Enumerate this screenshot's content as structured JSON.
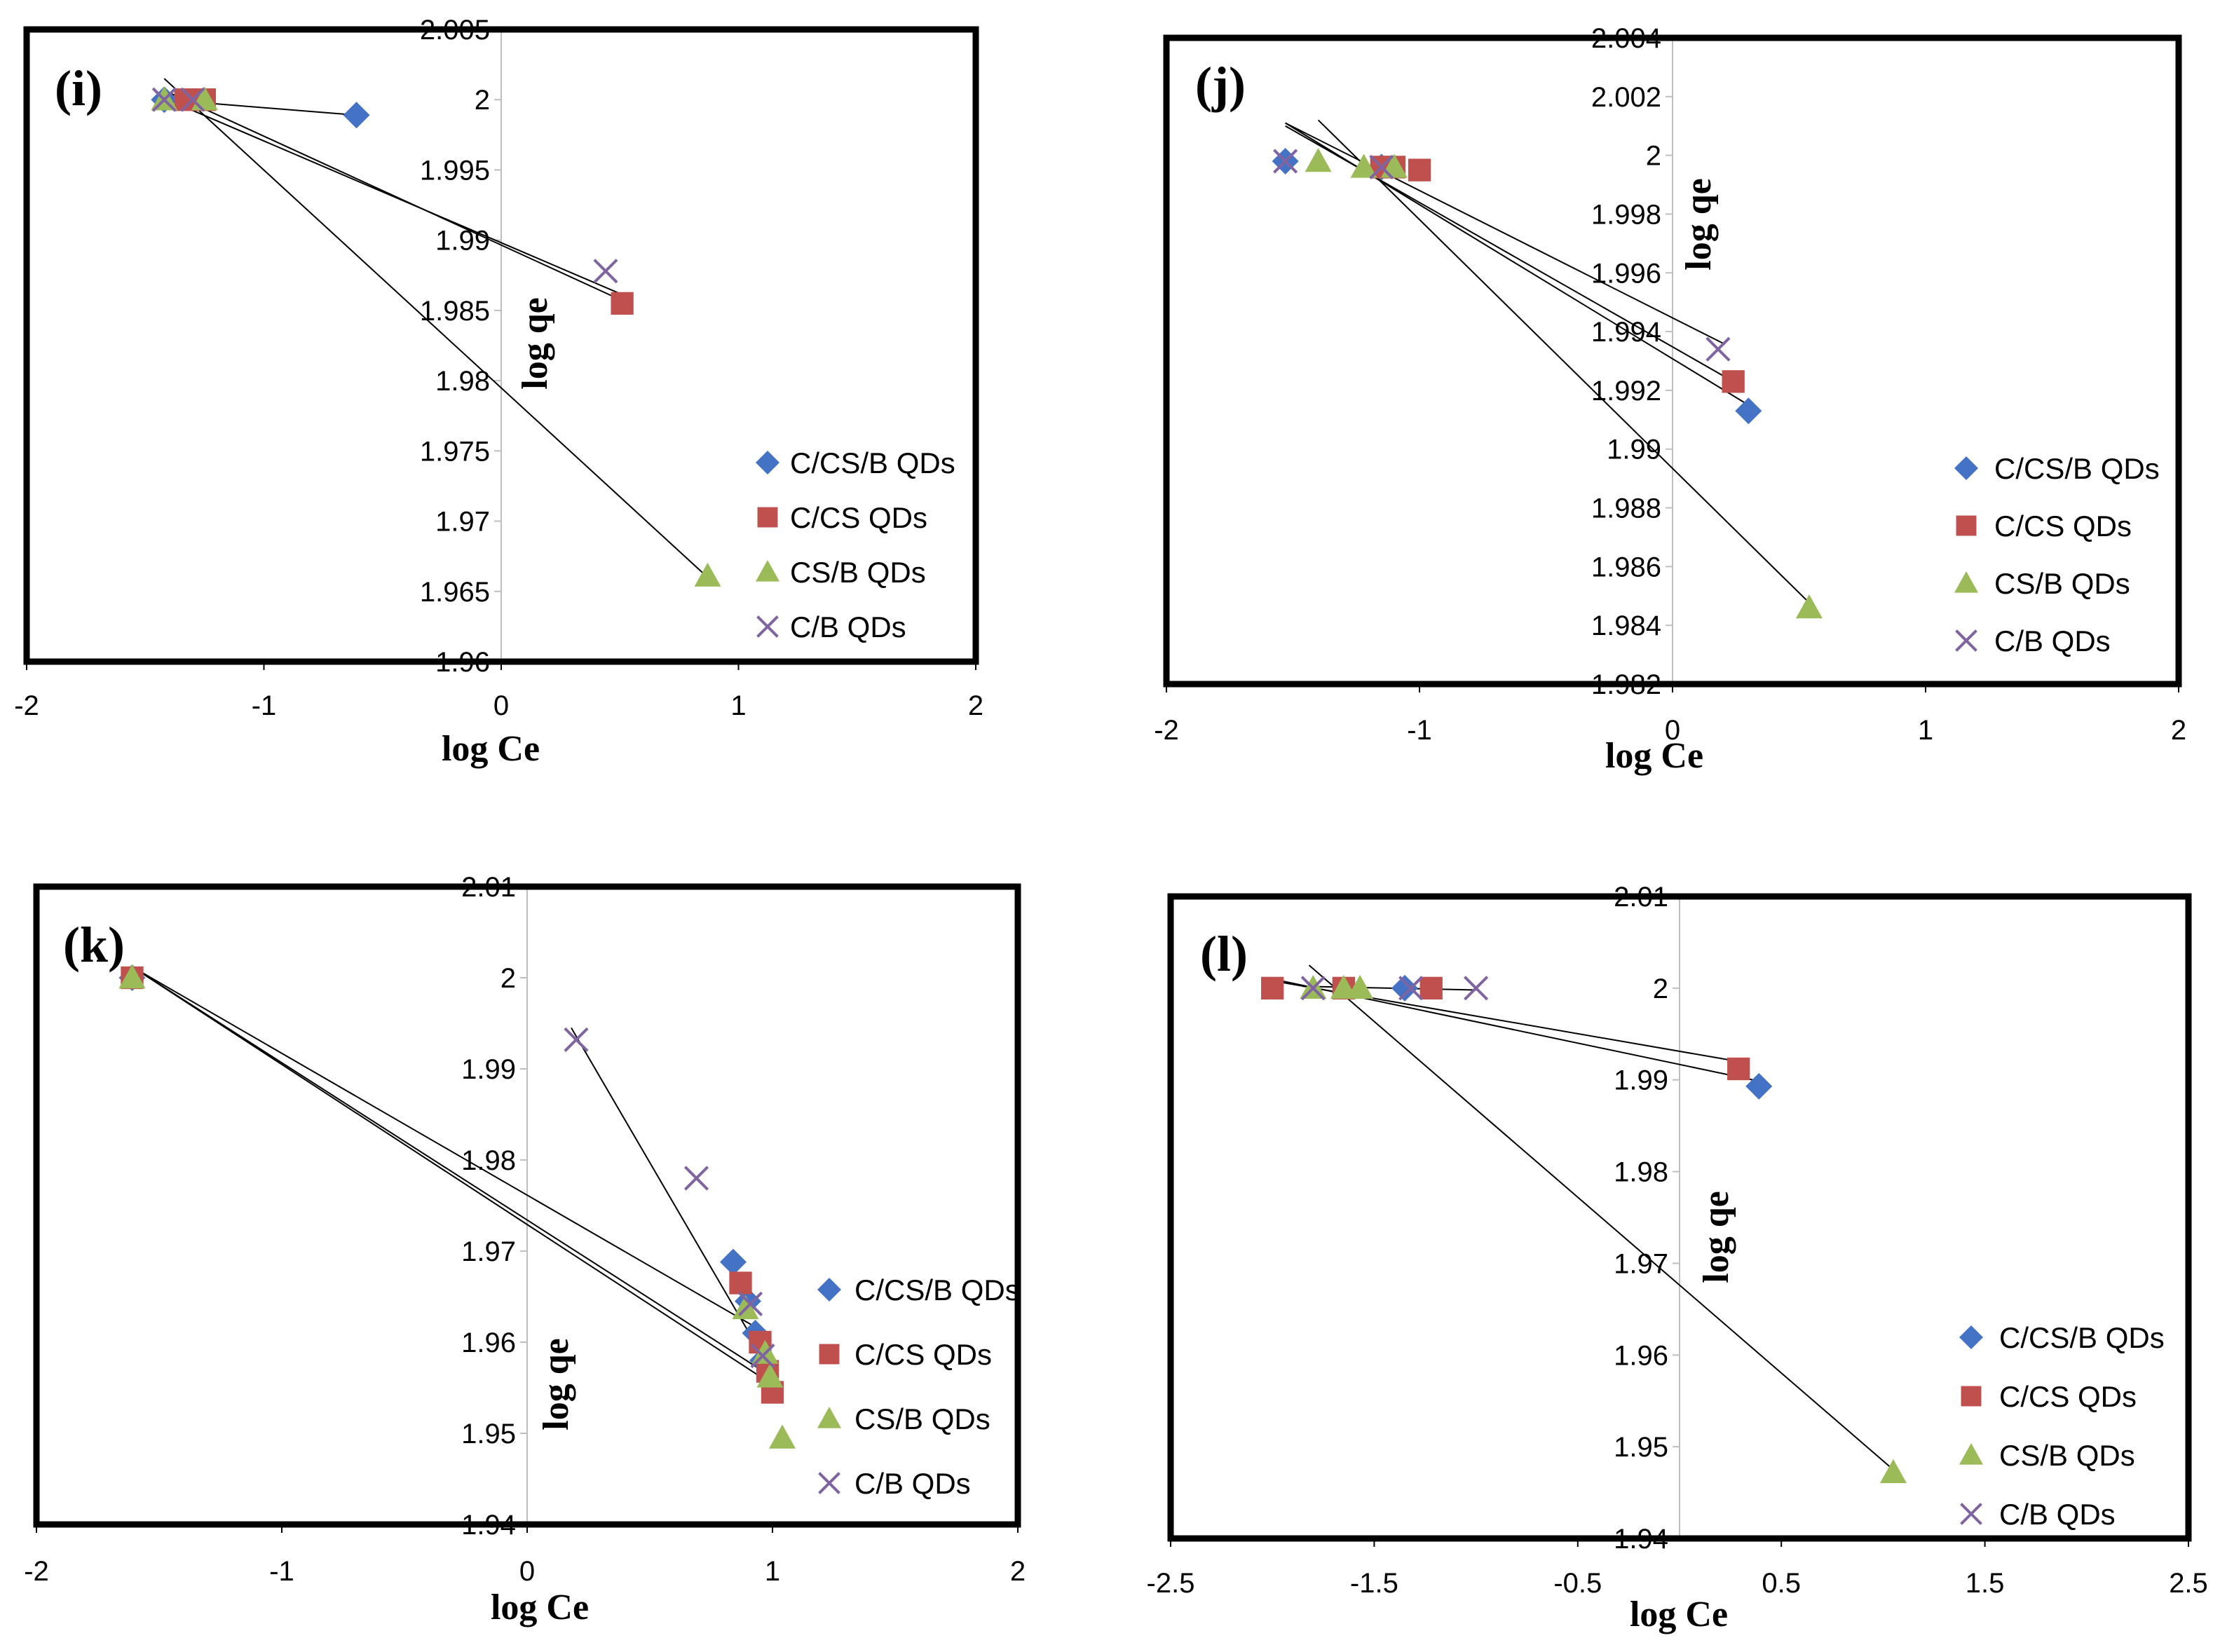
{
  "chart_data": [
    {
      "type": "scatter",
      "panel_label": "(i)",
      "xlabel": "log Ce",
      "ylabel": "log qe",
      "xlim": [
        -2,
        2
      ],
      "ylim": [
        1.96,
        2.005
      ],
      "xticks": [
        -2,
        -1,
        0,
        1,
        2
      ],
      "xtick_labels": [
        "-2",
        "-1",
        "0",
        "1",
        "2"
      ],
      "yticks": [
        1.96,
        1.965,
        1.97,
        1.975,
        1.98,
        1.985,
        1.99,
        1.995,
        2,
        2.005
      ],
      "ytick_labels": [
        "1.96",
        "1.965",
        "1.97",
        "1.975",
        "1.98",
        "1.985",
        "1.99",
        "1.995",
        "2",
        "2.005"
      ],
      "legend_position": "bottom-right",
      "series": [
        {
          "name": "C/CS/B QDs",
          "marker": "diamond",
          "color": "#4472C4",
          "x": [
            -1.42,
            -0.61
          ],
          "y": [
            2.0,
            1.9989
          ]
        },
        {
          "name": "C/CS QDs",
          "marker": "square",
          "color": "#C0504D",
          "x": [
            -1.33,
            -1.25,
            0.51
          ],
          "y": [
            2.0,
            2.0,
            1.9855
          ]
        },
        {
          "name": "CS/B QDs",
          "marker": "triangle",
          "color": "#9BBB59",
          "x": [
            -1.42,
            -1.25,
            0.87
          ],
          "y": [
            2.0,
            2.0,
            1.9661
          ]
        },
        {
          "name": "C/B QDs",
          "marker": "x",
          "color": "#8064A2",
          "x": [
            -1.42,
            -1.3,
            0.44
          ],
          "y": [
            2.0,
            2.0,
            1.9878
          ]
        }
      ],
      "trendlines": [
        {
          "x": [
            -1.42,
            -0.61
          ],
          "y": [
            2.0,
            1.9989
          ]
        },
        {
          "x": [
            -1.4,
            0.51
          ],
          "y": [
            2.0005,
            1.9857
          ]
        },
        {
          "x": [
            -1.42,
            0.87
          ],
          "y": [
            2.0015,
            1.966
          ]
        },
        {
          "x": [
            -1.42,
            0.5
          ],
          "y": [
            2.0001,
            1.9862
          ]
        }
      ]
    },
    {
      "type": "scatter",
      "panel_label": "(j)",
      "xlabel": "log Ce",
      "ylabel": "log qe",
      "xlim": [
        -2,
        2
      ],
      "ylim": [
        1.982,
        2.004
      ],
      "xticks": [
        -2,
        -1,
        0,
        1,
        2
      ],
      "xtick_labels": [
        "-2",
        "-1",
        "0",
        "1",
        "2"
      ],
      "yticks": [
        1.982,
        1.984,
        1.986,
        1.988,
        1.99,
        1.992,
        1.994,
        1.996,
        1.998,
        2,
        2.002,
        2.004
      ],
      "ytick_labels": [
        "1.982",
        "1.984",
        "1.986",
        "1.988",
        "1.99",
        "1.992",
        "1.994",
        "1.996",
        "1.998",
        "2",
        "2.002",
        "2.004"
      ],
      "legend_position": "bottom-right",
      "series": [
        {
          "name": "C/CS/B QDs",
          "marker": "diamond",
          "color": "#4472C4",
          "x": [
            -1.53,
            -1.15,
            0.3
          ],
          "y": [
            1.9998,
            1.9996,
            1.9913
          ]
        },
        {
          "name": "C/CS QDs",
          "marker": "square",
          "color": "#C0504D",
          "x": [
            -1.15,
            -1.1,
            -1.0,
            0.24
          ],
          "y": [
            1.9996,
            1.9996,
            1.9995,
            1.9923
          ]
        },
        {
          "name": "CS/B QDs",
          "marker": "triangle",
          "color": "#9BBB59",
          "x": [
            -1.4,
            -1.22,
            -1.1,
            0.54
          ],
          "y": [
            1.9998,
            1.9996,
            1.9996,
            1.9846
          ]
        },
        {
          "name": "C/B QDs",
          "marker": "x",
          "color": "#8064A2",
          "x": [
            -1.53,
            -1.15,
            0.18
          ],
          "y": [
            1.9998,
            1.9996,
            1.9934
          ]
        }
      ],
      "trendlines": [
        {
          "x": [
            -1.53,
            0.3
          ],
          "y": [
            2.0011,
            1.9915
          ]
        },
        {
          "x": [
            -1.53,
            0.24
          ],
          "y": [
            2.001,
            1.9923
          ]
        },
        {
          "x": [
            -1.4,
            0.56
          ],
          "y": [
            2.0012,
            1.9846
          ]
        },
        {
          "x": [
            -1.53,
            0.2
          ],
          "y": [
            2.0011,
            1.9936
          ]
        }
      ]
    },
    {
      "type": "scatter",
      "panel_label": "(k)",
      "xlabel": "log Ce",
      "ylabel": "log qe",
      "xlim": [
        -2,
        2
      ],
      "ylim": [
        1.94,
        2.01
      ],
      "xticks": [
        -2,
        -1,
        0,
        1,
        2
      ],
      "xtick_labels": [
        "-2",
        "-1",
        "0",
        "1",
        "2"
      ],
      "yticks": [
        1.94,
        1.95,
        1.96,
        1.97,
        1.98,
        1.99,
        2,
        2.01
      ],
      "ytick_labels": [
        "1.94",
        "1.95",
        "1.96",
        "1.97",
        "1.98",
        "1.99",
        "2",
        "2.01"
      ],
      "legend_position": "bottom-right",
      "series": [
        {
          "name": "C/CS/B QDs",
          "marker": "diamond",
          "color": "#4472C4",
          "x": [
            -1.61,
            0.84,
            0.9,
            0.93,
            0.96
          ],
          "y": [
            2.0,
            1.9688,
            1.9645,
            1.961,
            1.958
          ]
        },
        {
          "name": "C/CS QDs",
          "marker": "square",
          "color": "#C0504D",
          "x": [
            -1.61,
            0.87,
            0.95,
            0.98,
            1.0
          ],
          "y": [
            2.0,
            1.9665,
            1.96,
            1.9568,
            1.9545
          ]
        },
        {
          "name": "CS/B QDs",
          "marker": "triangle",
          "color": "#9BBB59",
          "x": [
            -1.61,
            0.89,
            0.97,
            0.99,
            1.04
          ],
          "y": [
            2.0,
            1.9637,
            1.9588,
            1.9562,
            1.9495
          ]
        },
        {
          "name": "C/B QDs",
          "marker": "x",
          "color": "#8064A2",
          "x": [
            0.2,
            0.69,
            0.91,
            0.96
          ],
          "y": [
            1.9932,
            1.978,
            1.9642,
            1.9585
          ]
        }
      ],
      "trendlines": [
        {
          "x": [
            -1.61,
            0.96
          ],
          "y": [
            2.0012,
            1.9612
          ]
        },
        {
          "x": [
            -1.61,
            0.98
          ],
          "y": [
            2.0012,
            1.9565
          ]
        },
        {
          "x": [
            -1.61,
            1.02
          ],
          "y": [
            2.0012,
            1.955
          ]
        },
        {
          "x": [
            0.18,
            0.97
          ],
          "y": [
            1.9945,
            1.958
          ]
        }
      ]
    },
    {
      "type": "scatter",
      "panel_label": "(l)",
      "xlabel": "log Ce",
      "ylabel": "log qe",
      "xlim": [
        -2.5,
        2.5
      ],
      "ylim": [
        1.94,
        2.01
      ],
      "xticks": [
        -2.5,
        -1.5,
        -0.5,
        0.5,
        1.5,
        2.5
      ],
      "xtick_labels": [
        "-2.5",
        "-1.5",
        "-0.5",
        "0.5",
        "1.5",
        "2.5"
      ],
      "yticks": [
        1.94,
        1.95,
        1.96,
        1.97,
        1.98,
        1.99,
        2,
        2.01
      ],
      "ytick_labels": [
        "1.94",
        "1.95",
        "1.96",
        "1.97",
        "1.98",
        "1.99",
        "2",
        "2.01"
      ],
      "legend_position": "bottom-right",
      "series": [
        {
          "name": "C/CS/B QDs",
          "marker": "diamond",
          "color": "#4472C4",
          "x": [
            -1.35,
            0.39
          ],
          "y": [
            2.0,
            1.9893
          ]
        },
        {
          "name": "C/CS QDs",
          "marker": "square",
          "color": "#C0504D",
          "x": [
            -2.0,
            -1.65,
            -1.22,
            0.29
          ],
          "y": [
            2.0,
            2.0,
            2.0,
            1.9912
          ]
        },
        {
          "name": "CS/B QDs",
          "marker": "triangle",
          "color": "#9BBB59",
          "x": [
            -1.8,
            -1.65,
            -1.57,
            1.05
          ],
          "y": [
            2.0,
            2.0,
            2.0,
            1.9472
          ]
        },
        {
          "name": "C/B QDs",
          "marker": "x",
          "color": "#8064A2",
          "x": [
            -1.8,
            -1.32,
            -1.0
          ],
          "y": [
            2.0,
            2.0,
            2.0
          ]
        }
      ],
      "trendlines": [
        {
          "x": [
            -2.0,
            0.36
          ],
          "y": [
            2.001,
            1.99
          ]
        },
        {
          "x": [
            -2.0,
            0.29
          ],
          "y": [
            2.0008,
            1.992
          ]
        },
        {
          "x": [
            -1.82,
            1.05
          ],
          "y": [
            2.0025,
            1.9475
          ]
        },
        {
          "x": [
            -1.85,
            -1.0
          ],
          "y": [
            2.0002,
            1.9998
          ]
        }
      ]
    }
  ]
}
